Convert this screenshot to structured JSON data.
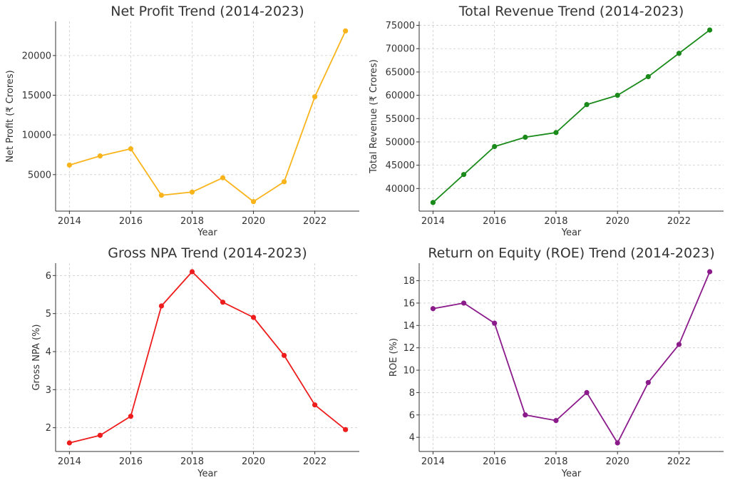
{
  "chart_data": [
    {
      "type": "line",
      "title": "Net Profit Trend (2014-2023)",
      "xlabel": "Year",
      "ylabel": "Net Profit (₹ Crores)",
      "color": "#f9b41c",
      "x": [
        2014,
        2015,
        2016,
        2017,
        2018,
        2019,
        2020,
        2021,
        2022,
        2023
      ],
      "values": [
        6200,
        7350,
        8250,
        2400,
        2800,
        4600,
        1600,
        4100,
        14800,
        23100
      ],
      "xticks": [
        2014,
        2016,
        2018,
        2020,
        2022
      ],
      "yticks": [
        5000,
        10000,
        15000,
        20000
      ],
      "xlim": [
        2013.55,
        2023.45
      ],
      "ylim": [
        400,
        24300
      ],
      "grid": true
    },
    {
      "type": "line",
      "title": "Total Revenue Trend (2014-2023)",
      "xlabel": "Year",
      "ylabel": "Total Revenue (₹ Crores)",
      "color": "#1a8a1a",
      "x": [
        2014,
        2015,
        2016,
        2017,
        2018,
        2019,
        2020,
        2021,
        2022,
        2023
      ],
      "values": [
        37000,
        43000,
        49000,
        51000,
        52000,
        58000,
        60000,
        64000,
        69000,
        74000
      ],
      "xticks": [
        2014,
        2016,
        2018,
        2020,
        2022
      ],
      "yticks": [
        40000,
        45000,
        50000,
        55000,
        60000,
        65000,
        70000,
        75000
      ],
      "xlim": [
        2013.55,
        2023.45
      ],
      "ylim": [
        35150,
        75850
      ],
      "grid": true
    },
    {
      "type": "line",
      "title": "Gross NPA Trend (2014-2023)",
      "xlabel": "Year",
      "ylabel": "Gross NPA (%)",
      "color": "#ee1c1c",
      "x": [
        2014,
        2015,
        2016,
        2017,
        2018,
        2019,
        2020,
        2021,
        2022,
        2023
      ],
      "values": [
        1.6,
        1.8,
        2.3,
        5.2,
        6.1,
        5.3,
        4.9,
        3.9,
        2.6,
        1.95
      ],
      "xticks": [
        2014,
        2016,
        2018,
        2020,
        2022
      ],
      "yticks": [
        2,
        3,
        4,
        5,
        6
      ],
      "xlim": [
        2013.55,
        2023.45
      ],
      "ylim": [
        1.375,
        6.325
      ],
      "grid": true
    },
    {
      "type": "line",
      "title": "Return on Equity (ROE) Trend (2014-2023)",
      "xlabel": "Year",
      "ylabel": "ROE (%)",
      "color": "#8b1a8b",
      "x": [
        2014,
        2015,
        2016,
        2017,
        2018,
        2019,
        2020,
        2021,
        2022,
        2023
      ],
      "values": [
        15.5,
        16.0,
        14.2,
        6.0,
        5.5,
        8.0,
        3.5,
        8.9,
        12.3,
        18.8
      ],
      "xticks": [
        2014,
        2016,
        2018,
        2020,
        2022
      ],
      "yticks": [
        4,
        6,
        8,
        10,
        12,
        14,
        16,
        18
      ],
      "xlim": [
        2013.55,
        2023.45
      ],
      "ylim": [
        2.735,
        19.565
      ],
      "grid": true
    }
  ]
}
